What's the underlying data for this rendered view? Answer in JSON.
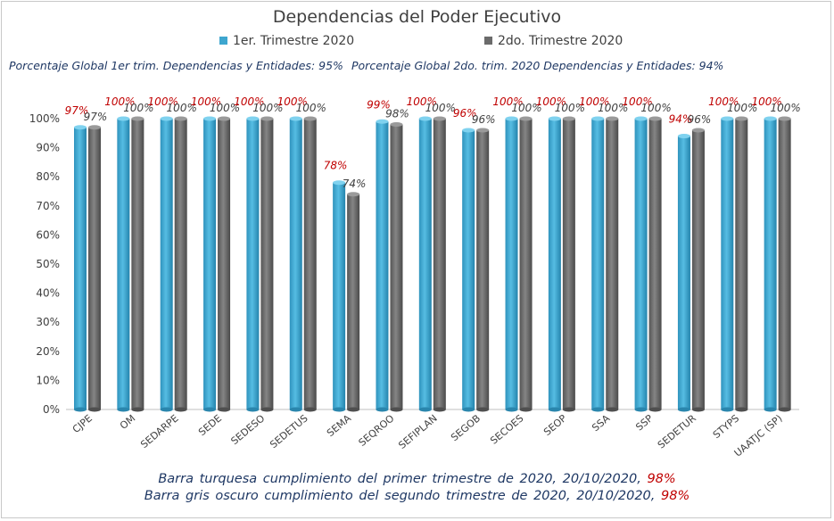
{
  "chart_data": {
    "type": "bar",
    "title": "Dependencias del Poder Ejecutivo",
    "categories": [
      "CJPE",
      "OM",
      "SEDARPE",
      "SEDE",
      "SEDESO",
      "SEDETUS",
      "SEMA",
      "SEQROO",
      "SEFIPLAN",
      "SEGOB",
      "SECOES",
      "SEOP",
      "SSA",
      "SSP",
      "SEDETUR",
      "STYPS",
      "UAATJC (SP)"
    ],
    "series": [
      {
        "name": "1er. Trimestre 2020",
        "color": "#3ea6cf",
        "values": [
          97,
          100,
          100,
          100,
          100,
          100,
          78,
          99,
          100,
          96,
          100,
          100,
          100,
          100,
          94,
          100,
          100
        ]
      },
      {
        "name": "2do. Trimestre 2020",
        "color": "#6b6b6b",
        "values": [
          97,
          100,
          100,
          100,
          100,
          100,
          74,
          98,
          100,
          96,
          100,
          100,
          100,
          100,
          96,
          100,
          100
        ]
      }
    ],
    "ylim": [
      0,
      100
    ],
    "yticks": [
      "0%",
      "10%",
      "20%",
      "30%",
      "40%",
      "50%",
      "60%",
      "70%",
      "80%",
      "90%",
      "100%"
    ],
    "grid": false,
    "legend": "top",
    "label_colors": {
      "series1": "#c00000",
      "series2": "#404040"
    }
  },
  "global_text": {
    "first": "Porcentaje Global 1er trim. Dependencias y Entidades: 95%",
    "second": "Porcentaje Global  2do. trim. 2020 Dependencias y Entidades: 94%"
  },
  "footnotes": [
    {
      "text": "Barra turquesa  cumplimiento  del primer trimestre de 2020,  20/10/2020, ",
      "value": "98%"
    },
    {
      "text": "Barra gris oscuro cumplimiento  del segundo  trimestre de 2020,  20/10/2020,  ",
      "value": "98%"
    }
  ]
}
